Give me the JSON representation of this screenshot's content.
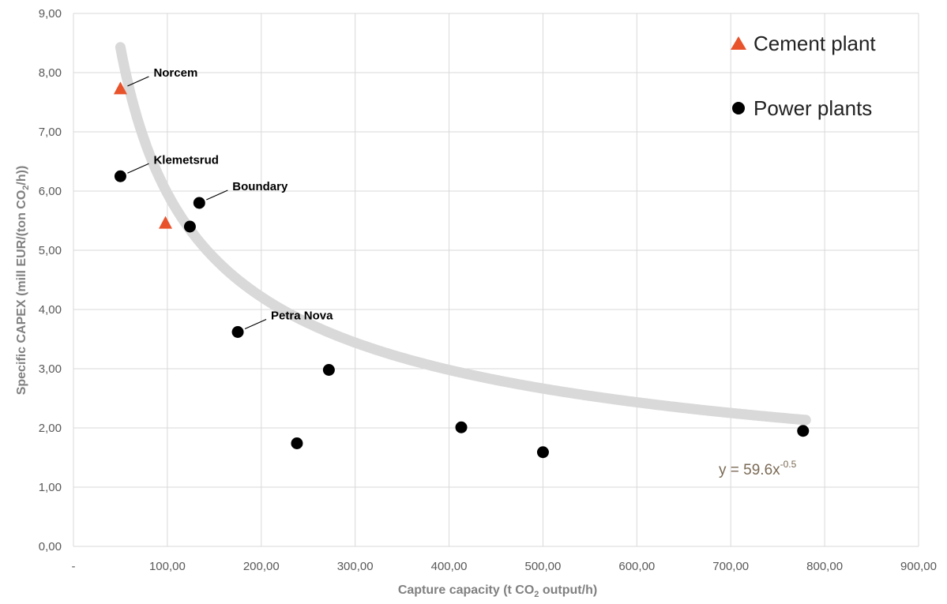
{
  "chart_data": {
    "type": "scatter",
    "title": "",
    "xlabel": {
      "before": "Capture capacity (t CO",
      "sub": "2",
      "after": " output/h)"
    },
    "ylabel": {
      "before": "Specific CAPEX (mill EUR/(ton CO",
      "sub": "2",
      "after": "/h))"
    },
    "xlim": [
      0,
      900
    ],
    "ylim": [
      0,
      9
    ],
    "x_ticks": [
      0,
      100,
      200,
      300,
      400,
      500,
      600,
      700,
      800,
      900
    ],
    "x_tick_labels": [
      "-",
      "100,00",
      "200,00",
      "300,00",
      "400,00",
      "500,00",
      "600,00",
      "700,00",
      "800,00",
      "900,00"
    ],
    "y_ticks": [
      0,
      1,
      2,
      3,
      4,
      5,
      6,
      7,
      8,
      9
    ],
    "y_tick_labels": [
      "0,00",
      "1,00",
      "2,00",
      "3,00",
      "4,00",
      "5,00",
      "6,00",
      "7,00",
      "8,00",
      "9,00"
    ],
    "grid": true,
    "legend_position": "top-right",
    "series": [
      {
        "name": "Cement plant",
        "marker": "triangle",
        "color": "#e8532b",
        "points": [
          {
            "x": 50,
            "y": 7.72,
            "label": "Norcem"
          },
          {
            "x": 98,
            "y": 5.45
          }
        ]
      },
      {
        "name": "Power plants",
        "marker": "circle",
        "color": "#000000",
        "points": [
          {
            "x": 50,
            "y": 6.25,
            "label": "Klemetsrud"
          },
          {
            "x": 134,
            "y": 5.8,
            "label": "Boundary"
          },
          {
            "x": 124,
            "y": 5.4
          },
          {
            "x": 175,
            "y": 3.62,
            "label": "Petra Nova"
          },
          {
            "x": 272,
            "y": 2.98
          },
          {
            "x": 238,
            "y": 1.74
          },
          {
            "x": 413,
            "y": 2.01
          },
          {
            "x": 500,
            "y": 1.59
          },
          {
            "x": 777,
            "y": 1.95
          }
        ]
      }
    ],
    "trendline": {
      "coefficient": 59.6,
      "exponent": -0.5,
      "x_range": [
        50,
        780
      ],
      "color": "#d9d9d9",
      "label": {
        "base": "y = 59.6x",
        "exp": "-0.5"
      }
    }
  }
}
